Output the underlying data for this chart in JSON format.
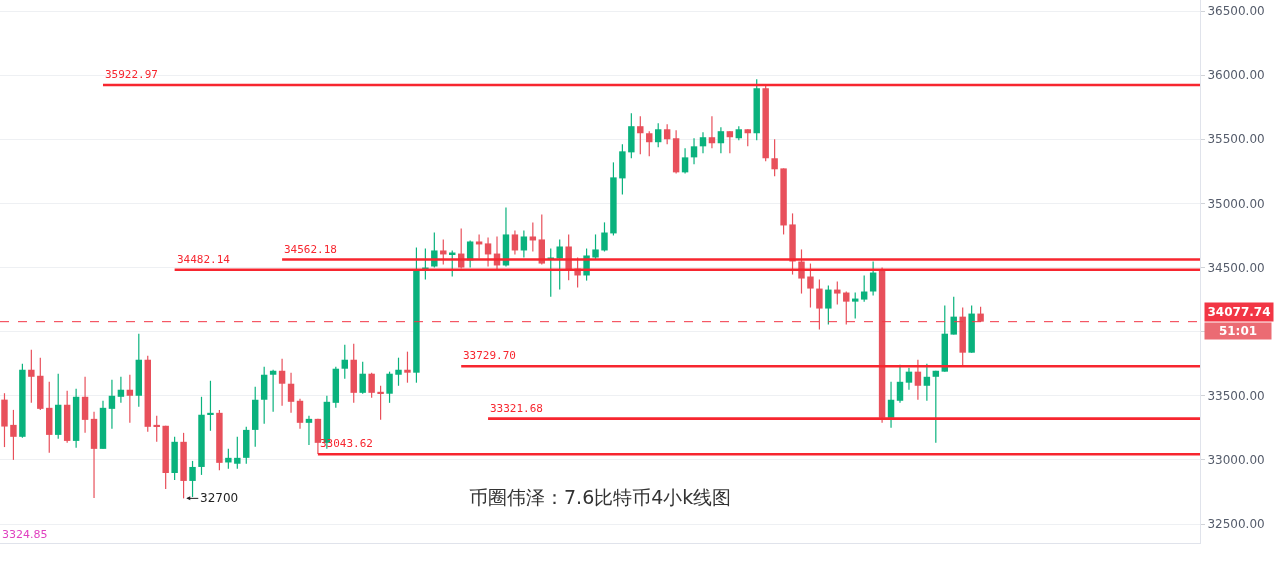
{
  "chart_data": {
    "type": "candlestick",
    "categories": [
      null,
      null,
      null,
      null,
      null,
      null,
      null,
      null,
      null,
      null,
      null,
      null,
      null,
      null,
      null,
      null,
      null,
      null,
      null,
      null,
      null,
      null,
      null,
      null,
      null,
      null,
      null,
      null,
      null,
      null,
      null,
      null,
      null,
      null,
      null,
      null,
      null,
      null,
      null,
      null,
      null,
      null,
      null,
      null,
      null,
      null,
      null,
      null,
      null,
      null,
      null,
      null,
      null,
      null,
      null,
      null,
      null,
      null,
      null,
      null,
      null,
      null,
      null,
      null,
      null,
      null,
      null,
      null,
      null,
      null,
      null,
      null,
      null,
      null,
      null,
      null,
      null,
      null,
      null,
      null,
      null,
      null,
      null,
      null,
      null,
      null,
      null,
      null,
      null,
      null,
      null,
      null,
      null,
      null,
      null,
      null,
      null,
      null,
      null,
      null,
      null,
      null,
      null,
      null,
      null,
      null,
      null,
      null,
      null,
      null,
      null,
      null,
      null,
      null,
      null,
      null,
      null,
      null,
      null,
      null,
      null,
      null,
      null,
      null,
      null,
      null,
      null,
      null,
      null,
      null,
      null,
      null,
      null,
      null
    ],
    "colors": [
      "#e8505b",
      "#e8505b",
      "#0ab27d",
      "#e8505b",
      "#e8505b",
      "#e8505b",
      "#0ab27d",
      "#e8505b",
      "#0ab27d",
      "#e8505b",
      "#e8505b",
      "#0ab27d",
      "#0ab27d",
      "#0ab27d",
      "#e8505b",
      "#0ab27d",
      "#e8505b",
      "#e8505b",
      "#e8505b",
      "#0ab27d",
      "#e8505b",
      "#0ab27d",
      "#0ab27d",
      "#0ab27d",
      "#e8505b",
      "#0ab27d",
      "#0ab27d",
      "#0ab27d",
      "#0ab27d",
      "#0ab27d",
      "#0ab27d",
      "#e8505b",
      "#e8505b",
      "#e8505b",
      "#0ab27d",
      "#e8505b",
      "#0ab27d",
      "#0ab27d",
      "#0ab27d",
      "#e8505b",
      "#0ab27d",
      "#e8505b",
      "#e8505b",
      "#0ab27d",
      "#0ab27d",
      "#e8505b",
      "#0ab27d",
      "#0ab27d",
      "#0ab27d",
      "#e8505b",
      "#0ab27d",
      "#e8505b",
      "#0ab27d",
      "#e8505b",
      "#e8505b",
      "#e8505b",
      "#0ab27d",
      "#e8505b",
      "#0ab27d",
      "#e8505b",
      "#e8505b",
      "#0ab27d",
      "#0ab27d",
      "#e8505b",
      "#e8505b",
      "#0ab27d",
      "#0ab27d",
      "#0ab27d",
      "#0ab27d",
      "#0ab27d",
      "#0ab27d",
      "#e8505b",
      "#e8505b",
      "#0ab27d",
      "#e8505b",
      "#e8505b",
      "#0ab27d",
      "#0ab27d",
      "#0ab27d",
      "#e8505b",
      "#0ab27d",
      "#e8505b",
      "#0ab27d",
      "#e8505b",
      "#0ab27d",
      "#e8505b",
      "#e8505b",
      "#e8505b",
      "#e8505b",
      "#e8505b",
      "#e8505b",
      "#e8505b",
      "#0ab27d",
      "#e8505b",
      "#e8505b",
      "#0ab27d",
      "#0ab27d",
      "#0ab27d",
      "#e8505b",
      "#0ab27d",
      "#0ab27d",
      "#0ab27d",
      "#e8505b",
      "#0ab27d",
      "#0ab27d",
      "#0ab27d",
      "#0ab27d",
      "#e8505b",
      "#0ab27d",
      "#e8505b",
      null,
      null,
      null,
      null,
      null,
      null,
      null,
      null,
      null,
      null,
      null,
      null,
      null,
      null,
      null,
      null,
      null,
      null,
      null,
      null,
      null,
      null,
      null,
      null
    ],
    "ohlc": [
      [
        33470,
        33520,
        33100,
        33260
      ],
      [
        33273,
        33390,
        33000,
        33180
      ],
      [
        33180,
        33750,
        33172,
        33703
      ],
      [
        33703,
        33859,
        33445,
        33648
      ],
      [
        33656,
        33797,
        33390,
        33398
      ],
      [
        33406,
        33609,
        33055,
        33195
      ],
      [
        33195,
        33672,
        33164,
        33430
      ],
      [
        33430,
        33539,
        33133,
        33148
      ],
      [
        33148,
        33555,
        33094,
        33492
      ],
      [
        33492,
        33648,
        33211,
        33312
      ],
      [
        33320,
        33375,
        32703,
        33086
      ],
      [
        33086,
        33461,
        33086,
        33406
      ],
      [
        33398,
        33625,
        33242,
        33500
      ],
      [
        33492,
        33648,
        33445,
        33547
      ],
      [
        33547,
        33664,
        33289,
        33500
      ],
      [
        33500,
        33984,
        33414,
        33781
      ],
      [
        33781,
        33812,
        33219,
        33258
      ],
      [
        33273,
        33344,
        33141,
        33258
      ],
      [
        33266,
        33266,
        32773,
        32898
      ],
      [
        32898,
        33180,
        32844,
        33141
      ],
      [
        33141,
        33211,
        32700,
        32836
      ],
      [
        32836,
        32992,
        32711,
        32945
      ],
      [
        32945,
        33492,
        32883,
        33352
      ],
      [
        33352,
        33617,
        33227,
        33367
      ],
      [
        33367,
        33390,
        32920,
        32977
      ],
      [
        32980,
        33086,
        32930,
        33016
      ],
      [
        32970,
        33180,
        32930,
        33016
      ],
      [
        33016,
        33258,
        32970,
        33234
      ],
      [
        33234,
        33570,
        33102,
        33469
      ],
      [
        33469,
        33727,
        33281,
        33664
      ],
      [
        33664,
        33703,
        33375,
        33695
      ],
      [
        33695,
        33789,
        33422,
        33594
      ],
      [
        33594,
        33680,
        33367,
        33453
      ],
      [
        33461,
        33477,
        33242,
        33289
      ],
      [
        33289,
        33344,
        33117,
        33320
      ],
      [
        33320,
        33320,
        33045,
        33133
      ],
      [
        33133,
        33500,
        33086,
        33453
      ],
      [
        33445,
        33727,
        33406,
        33711
      ],
      [
        33711,
        33898,
        33633,
        33781
      ],
      [
        33781,
        33906,
        33445,
        33523
      ],
      [
        33523,
        33766,
        33516,
        33672
      ],
      [
        33672,
        33680,
        33484,
        33523
      ],
      [
        33531,
        33578,
        33313,
        33516
      ],
      [
        33516,
        33688,
        33445,
        33672
      ],
      [
        33664,
        33797,
        33578,
        33703
      ],
      [
        33703,
        33844,
        33602,
        33680
      ],
      [
        33680,
        34656,
        33602,
        34484
      ],
      [
        34477,
        34648,
        34406,
        34500
      ],
      [
        34508,
        34773,
        34500,
        34633
      ],
      [
        34633,
        34719,
        34523,
        34602
      ],
      [
        34602,
        34633,
        34430,
        34617
      ],
      [
        34609,
        34805,
        34492,
        34500
      ],
      [
        34555,
        34711,
        34500,
        34703
      ],
      [
        34703,
        34758,
        34570,
        34680
      ],
      [
        34688,
        34734,
        34508,
        34602
      ],
      [
        34609,
        34742,
        34484,
        34516
      ],
      [
        34516,
        34969,
        34508,
        34758
      ],
      [
        34758,
        34789,
        34602,
        34633
      ],
      [
        34633,
        34789,
        34578,
        34742
      ],
      [
        34742,
        34852,
        34625,
        34711
      ],
      [
        34719,
        34914,
        34523,
        34531
      ],
      [
        34563,
        34648,
        34273,
        34578
      ],
      [
        34570,
        34719,
        34328,
        34664
      ],
      [
        34664,
        34758,
        34400,
        34484
      ],
      [
        34492,
        34578,
        34344,
        34438
      ],
      [
        34438,
        34648,
        34398,
        34594
      ],
      [
        34578,
        34758,
        34563,
        34641
      ],
      [
        34633,
        34852,
        34625,
        34773
      ],
      [
        34766,
        35320,
        34750,
        35203
      ],
      [
        35195,
        35461,
        35070,
        35406
      ],
      [
        35398,
        35703,
        35352,
        35602
      ],
      [
        35602,
        35680,
        35383,
        35547
      ],
      [
        35547,
        35563,
        35367,
        35477
      ],
      [
        35477,
        35625,
        35438,
        35578
      ],
      [
        35578,
        35617,
        35461,
        35500
      ],
      [
        35508,
        35570,
        35234,
        35242
      ],
      [
        35242,
        35430,
        35234,
        35359
      ],
      [
        35359,
        35508,
        35305,
        35445
      ],
      [
        35445,
        35555,
        35391,
        35516
      ],
      [
        35516,
        35680,
        35430,
        35469
      ],
      [
        35469,
        35594,
        35391,
        35563
      ],
      [
        35563,
        35563,
        35391,
        35516
      ],
      [
        35508,
        35602,
        35492,
        35578
      ],
      [
        35578,
        35578,
        35445,
        35547
      ],
      [
        35547,
        35969,
        35492,
        35898
      ],
      [
        35898,
        35922,
        35328,
        35352
      ],
      [
        35352,
        35500,
        35211,
        35266
      ],
      [
        35273,
        35273,
        34758,
        34828
      ],
      [
        34836,
        34922,
        34445,
        34547
      ],
      [
        34547,
        34641,
        34297,
        34414
      ],
      [
        34430,
        34531,
        34188,
        34336
      ],
      [
        34336,
        34406,
        34016,
        34180
      ],
      [
        34180,
        34359,
        34055,
        34328
      ],
      [
        34328,
        34391,
        34211,
        34297
      ],
      [
        34305,
        34313,
        34055,
        34234
      ],
      [
        34234,
        34305,
        34102,
        34258
      ],
      [
        34250,
        34438,
        34234,
        34313
      ],
      [
        34313,
        34547,
        34281,
        34461
      ],
      [
        34477,
        34500,
        33289,
        33328
      ],
      [
        33328,
        33609,
        33250,
        33469
      ],
      [
        33461,
        33742,
        33445,
        33609
      ],
      [
        33602,
        33719,
        33547,
        33688
      ],
      [
        33688,
        33781,
        33469,
        33578
      ],
      [
        33578,
        33750,
        33461,
        33648
      ],
      [
        33648,
        33695,
        33133,
        33695
      ],
      [
        33688,
        34203,
        33688,
        33984
      ],
      [
        33977,
        34273,
        33977,
        34117
      ],
      [
        34117,
        34188,
        33734,
        33836
      ],
      [
        33836,
        34203,
        33836,
        34141
      ],
      [
        34141,
        34195,
        34078,
        34078
      ],
      null,
      null,
      null,
      null,
      null,
      null,
      null,
      null,
      null,
      null,
      null,
      null,
      null,
      null,
      null,
      null,
      null,
      null,
      null,
      null,
      null,
      null,
      null,
      null
    ],
    "ylim": [
      32352,
      36586
    ],
    "yticks": [
      {
        "value": 32500,
        "label": "32500.00"
      },
      {
        "value": 33000,
        "label": "33000.00"
      },
      {
        "value": 33500,
        "label": "33500.00"
      },
      {
        "value": 34000,
        "label": null
      },
      {
        "value": 34500,
        "label": "34500.00"
      },
      {
        "value": 35000,
        "label": "35000.00"
      },
      {
        "value": 35500,
        "label": "35500.00"
      },
      {
        "value": 36000,
        "label": "36000.00"
      },
      {
        "value": 36500,
        "label": "36500.00"
      }
    ],
    "tick_labels": "y",
    "grid": "y",
    "ref_lines": [
      {
        "axis": "y",
        "value": 35922.97,
        "label": "35922.97",
        "color": "#f7262f"
      },
      {
        "axis": "y",
        "value": 34562.18,
        "label": "34562.18",
        "color": "#f7262f"
      },
      {
        "axis": "y",
        "value": 34482.14,
        "label": "34482.14",
        "color": "#f7262f"
      },
      {
        "axis": "y",
        "value": 33729.7,
        "label": "33729.70",
        "color": "#f7262f"
      },
      {
        "axis": "y",
        "value": 33321.68,
        "label": "33321.68",
        "color": "#f7262f"
      },
      {
        "axis": "y",
        "value": 33043.62,
        "label": "33043.62",
        "color": "#f7262f"
      },
      {
        "axis": "y",
        "value": 34077.74,
        "label": "34077.74",
        "color": "#f23645",
        "line_style": "dashed"
      }
    ],
    "annotations": [
      "32700",
      "51:01",
      "3324.85",
      "币圈伟泽：7.6比特币4小k线图"
    ]
  }
}
